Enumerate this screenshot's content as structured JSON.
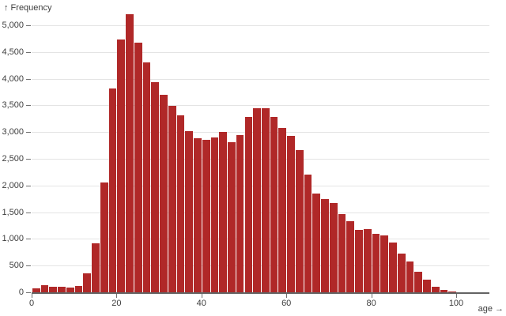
{
  "chart_data": {
    "type": "bar",
    "title": "",
    "xlabel": "age",
    "ylabel": "Frequency",
    "ylabel_display": "↑ Frequency",
    "xlabel_display": "age →",
    "bar_color": "#b02828",
    "grid": true,
    "xlim": [
      0,
      108
    ],
    "ylim": [
      0,
      5000
    ],
    "bin_width": 2,
    "bin_starts": [
      0,
      2,
      4,
      6,
      8,
      10,
      12,
      14,
      16,
      18,
      20,
      22,
      24,
      26,
      28,
      30,
      32,
      34,
      36,
      38,
      40,
      42,
      44,
      46,
      48,
      50,
      52,
      54,
      56,
      58,
      60,
      62,
      64,
      66,
      68,
      70,
      72,
      74,
      76,
      78,
      80,
      82,
      84,
      86,
      88,
      90,
      92,
      94,
      96,
      98
    ],
    "values": [
      75,
      130,
      105,
      105,
      90,
      120,
      350,
      920,
      2050,
      3820,
      4730,
      5200,
      4680,
      4300,
      3940,
      3700,
      3490,
      3320,
      3020,
      2890,
      2860,
      2900,
      3010,
      2810,
      2950,
      3280,
      3440,
      3450,
      3280,
      3080,
      2930,
      2660,
      2200,
      1850,
      1750,
      1670,
      1470,
      1330,
      1170,
      1190,
      1100,
      1070,
      930,
      720,
      580,
      390,
      230,
      110,
      40,
      15
    ],
    "y_ticks": [
      {
        "value": 0,
        "label": "0"
      },
      {
        "value": 500,
        "label": "500"
      },
      {
        "value": 1000,
        "label": "1,000"
      },
      {
        "value": 1500,
        "label": "1,500"
      },
      {
        "value": 2000,
        "label": "2,000"
      },
      {
        "value": 2500,
        "label": "2,500"
      },
      {
        "value": 3000,
        "label": "3,000"
      },
      {
        "value": 3500,
        "label": "3,500"
      },
      {
        "value": 4000,
        "label": "4,000"
      },
      {
        "value": 4500,
        "label": "4,500"
      },
      {
        "value": 5000,
        "label": "5,000"
      }
    ],
    "x_ticks": [
      {
        "value": 0,
        "label": "0"
      },
      {
        "value": 20,
        "label": "20"
      },
      {
        "value": 40,
        "label": "40"
      },
      {
        "value": 60,
        "label": "60"
      },
      {
        "value": 80,
        "label": "80"
      },
      {
        "value": 100,
        "label": "100"
      }
    ]
  }
}
